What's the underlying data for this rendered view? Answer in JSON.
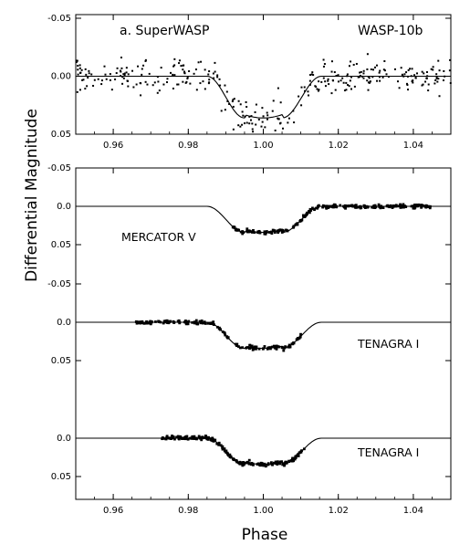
{
  "figure": {
    "ylabel": "Differential Magnitude",
    "xlabel": "Phase"
  },
  "chart_data": [
    {
      "type": "scatter",
      "panel_label": "a. SuperWASP",
      "target_label": "WASP-10b",
      "x_ticks": [
        "0.96",
        "0.98",
        "1.00",
        "1.02",
        "1.04"
      ],
      "y_ticks": [
        "-0.05",
        "0.00",
        "0.05"
      ],
      "xlim": [
        0.95,
        1.05
      ],
      "ylim": [
        -0.05,
        0.05
      ],
      "y_inverted": true,
      "series": [
        {
          "kind": "points",
          "generator": "superwasp_scatter",
          "count": 330,
          "noise_sd": 0.02
        },
        {
          "kind": "model",
          "depth": 0.036,
          "ingress_start": 0.985,
          "ingress_end": 0.995,
          "egress_start": 1.005,
          "egress_end": 1.0155
        }
      ]
    },
    {
      "type": "scatter",
      "x_ticks": [
        "0.96",
        "0.98",
        "1.00",
        "1.02",
        "1.04"
      ],
      "xlim": [
        0.95,
        1.05
      ],
      "y_inverted": true,
      "sub_panels": [
        {
          "label": "MERCATOR V",
          "y_ticks": [
            "-0.05",
            "0.0",
            "0.05"
          ],
          "ylim": [
            -0.05,
            0.05
          ],
          "data_range": [
            0.99,
            1.045
          ],
          "count": 240,
          "noise_sd": 0.003
        },
        {
          "label": "TENAGRA I",
          "y_ticks": [
            "-0.05",
            "0.0",
            "0.05"
          ],
          "ylim": [
            -0.05,
            0.05
          ],
          "data_range": [
            0.966,
            1.01
          ],
          "count": 170,
          "noise_sd": 0.003
        },
        {
          "label": "TENAGRA I",
          "y_ticks": [
            "0.0",
            "0.05"
          ],
          "ylim": [
            -0.01,
            0.05
          ],
          "data_range": [
            0.973,
            1.011
          ],
          "count": 220,
          "noise_sd": 0.003
        }
      ],
      "model": {
        "depth": 0.034,
        "ingress_start": 0.985,
        "ingress_end": 0.995,
        "egress_start": 1.005,
        "egress_end": 1.0155
      }
    }
  ]
}
